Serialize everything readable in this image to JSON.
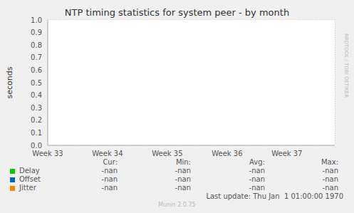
{
  "chart_data": {
    "type": "line",
    "title": "NTP timing statistics for system peer - by month",
    "y_label": "seconds",
    "x": [
      33,
      34,
      35,
      36,
      37
    ],
    "xlim": [
      33,
      37.8
    ],
    "xticks": [
      {
        "value": 33,
        "label": "Week 33"
      },
      {
        "value": 34,
        "label": "Week 34"
      },
      {
        "value": 35,
        "label": "Week 35"
      },
      {
        "value": 36,
        "label": "Week 36"
      },
      {
        "value": 37,
        "label": "Week 37"
      }
    ],
    "ylim": [
      0,
      1
    ],
    "yticks": [
      {
        "value": 0,
        "label": "0.0"
      },
      0.1,
      0.2,
      0.3,
      0.4,
      0.5,
      0.6,
      0.7,
      0.8,
      0.9,
      {
        "value": 1,
        "label": "1.0"
      }
    ],
    "grid": true,
    "series": [
      {
        "name": "Delay",
        "color": "#00cc00",
        "values": [
          null,
          null,
          null,
          null,
          null
        ],
        "stats": [
          "-nan",
          "-nan",
          "-nan",
          "-nan"
        ]
      },
      {
        "name": "Offset",
        "color": "#0066b3",
        "values": [
          null,
          null,
          null,
          null,
          null
        ],
        "stats": [
          "-nan",
          "-nan",
          "-nan",
          "-nan"
        ]
      },
      {
        "name": "Jitter",
        "color": "#ff8000",
        "values": [
          null,
          null,
          null,
          null,
          null
        ],
        "stats": [
          "-nan",
          "-nan",
          "-nan",
          "-nan"
        ]
      }
    ],
    "stats_headers": [
      "Cur:",
      "Min:",
      "Avg:",
      "Max:"
    ],
    "annotations": [
      "RRDTOOL / TOBI OETIKER",
      "Last update: Thu Jan  1 01:00:00 1970",
      "Munin 2.0.75"
    ]
  }
}
